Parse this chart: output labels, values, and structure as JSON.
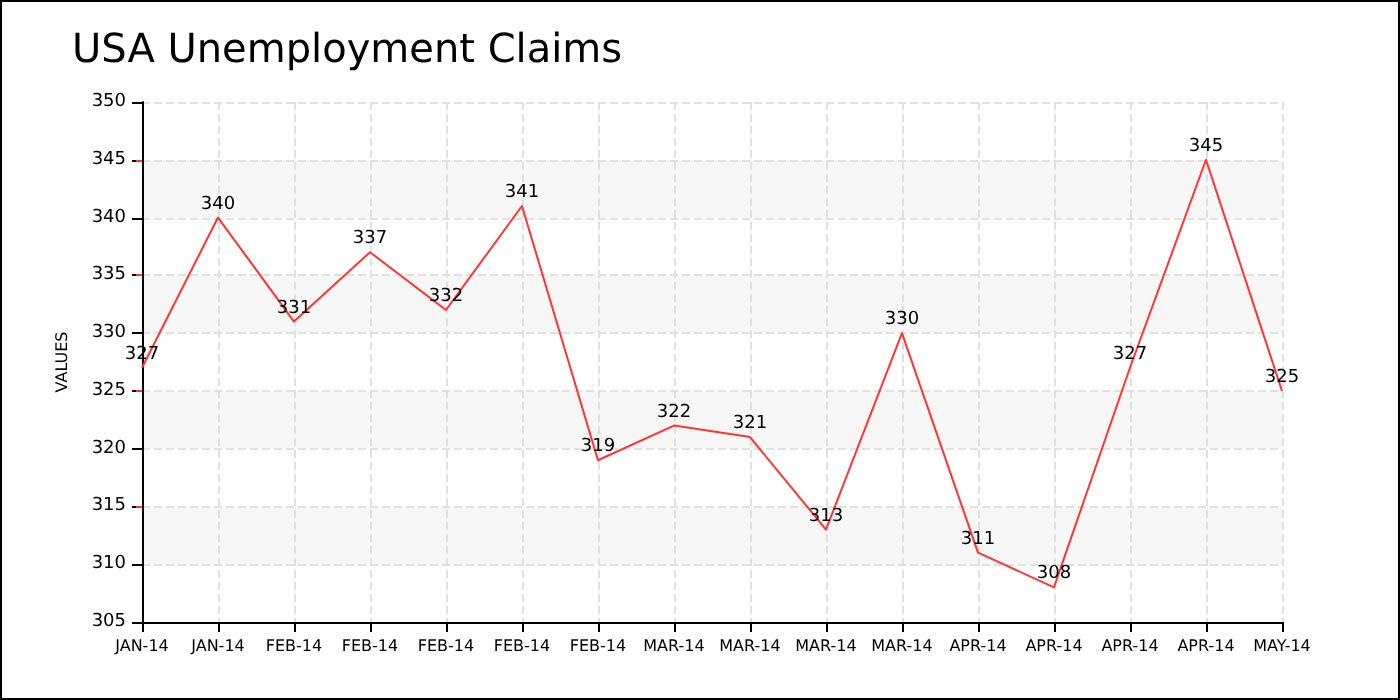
{
  "chart_data": {
    "type": "line",
    "title": "USA Unemployment Claims",
    "ylabel": "VALUES",
    "categories": [
      "JAN-14",
      "JAN-14",
      "FEB-14",
      "FEB-14",
      "FEB-14",
      "FEB-14",
      "FEB-14",
      "MAR-14",
      "MAR-14",
      "MAR-14",
      "MAR-14",
      "APR-14",
      "APR-14",
      "APR-14",
      "APR-14",
      "MAY-14"
    ],
    "series": [
      {
        "color": "#ff3333",
        "values": [
          327,
          340,
          331,
          337,
          332,
          341,
          319,
          322,
          321,
          313,
          330,
          311,
          308,
          327,
          345,
          325
        ]
      }
    ],
    "ylim": [
      305,
      350
    ],
    "yticks": [
      305,
      310,
      315,
      320,
      325,
      330,
      335,
      340,
      345,
      350
    ],
    "grid": true,
    "data_labels": true,
    "marker": "none",
    "line_style": "solid"
  }
}
